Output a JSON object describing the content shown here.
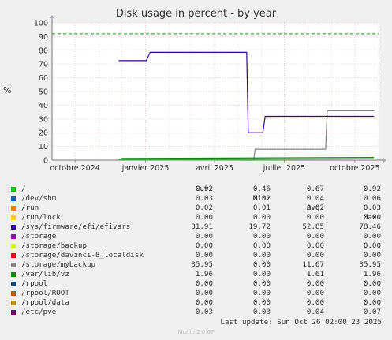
{
  "chart_data": {
    "type": "line",
    "title": "Disk usage in percent - by year",
    "ylabel": "%",
    "ylim": [
      0,
      100
    ],
    "yticks": [
      0,
      10,
      20,
      30,
      40,
      50,
      60,
      70,
      80,
      90,
      100
    ],
    "xlim": [
      "2024-09-01",
      "2025-11-01"
    ],
    "xticks": [
      {
        "date": "2024-10-01",
        "label": "octobre 2024"
      },
      {
        "date": "2025-01-01",
        "label": "janvier 2025"
      },
      {
        "date": "2025-04-01",
        "label": "avril 2025"
      },
      {
        "date": "2025-07-01",
        "label": "juillet 2025"
      },
      {
        "date": "2025-10-01",
        "label": "octobre 2025"
      }
    ],
    "grid": true,
    "warning_line": {
      "value": 92,
      "color": "#00aa00"
    },
    "series": [
      {
        "name": "/sys/firmware/efi/efivars",
        "color": "#330099",
        "points": [
          [
            "2024-11-27",
            72.5
          ],
          [
            "2025-01-02",
            72.5
          ],
          [
            "2025-01-07",
            78.5
          ],
          [
            "2025-05-13",
            78.5
          ],
          [
            "2025-05-15",
            20
          ],
          [
            "2025-06-03",
            20
          ],
          [
            "2025-06-06",
            31.9
          ],
          [
            "2025-10-26",
            31.9
          ]
        ]
      },
      {
        "name": "/storage/mybackup",
        "color": "#808080",
        "points": [
          [
            "2025-05-04",
            0
          ],
          [
            "2025-05-22",
            0
          ],
          [
            "2025-05-24",
            8
          ],
          [
            "2025-08-24",
            8
          ],
          [
            "2025-08-26",
            35.95
          ],
          [
            "2025-10-26",
            35.95
          ]
        ]
      },
      {
        "name": "/var/lib/vz",
        "color": "#008f00",
        "points": [
          [
            "2024-11-27",
            0.5
          ],
          [
            "2024-12-02",
            1.2
          ],
          [
            "2025-10-26",
            1.96
          ]
        ]
      },
      {
        "name": "/",
        "color": "#00cc00",
        "points": [
          [
            "2024-11-27",
            0.5
          ],
          [
            "2025-10-26",
            0.92
          ]
        ]
      }
    ]
  },
  "legend": {
    "headers": {
      "cur": "Cur:",
      "min": "Min:",
      "avg": "Avg:",
      "max": "Max:"
    },
    "rows": [
      {
        "name": "/",
        "color": "#00cc00",
        "cur": "0.92",
        "min": "0.46",
        "avg": "0.67",
        "max": "0.92"
      },
      {
        "name": "/dev/shm",
        "color": "#0066b3",
        "cur": "0.03",
        "min": "0.02",
        "avg": "0.04",
        "max": "0.06"
      },
      {
        "name": "/run",
        "color": "#ff8000",
        "cur": "0.02",
        "min": "0.01",
        "avg": "0.02",
        "max": "0.03"
      },
      {
        "name": "/run/lock",
        "color": "#ffcc00",
        "cur": "0.00",
        "min": "0.00",
        "avg": "0.00",
        "max": "0.00"
      },
      {
        "name": "/sys/firmware/efi/efivars",
        "color": "#330099",
        "cur": "31.91",
        "min": "19.72",
        "avg": "52.85",
        "max": "78.46"
      },
      {
        "name": "/storage",
        "color": "#990099",
        "cur": "0.00",
        "min": "0.00",
        "avg": "0.00",
        "max": "0.00"
      },
      {
        "name": "/storage/backup",
        "color": "#ccff00",
        "cur": "0.00",
        "min": "0.00",
        "avg": "0.00",
        "max": "0.00"
      },
      {
        "name": "/storage/davinci-8_localdisk",
        "color": "#ff0000",
        "cur": "0.00",
        "min": "0.00",
        "avg": "0.00",
        "max": "0.00"
      },
      {
        "name": "/storage/mybackup",
        "color": "#808080",
        "cur": "35.95",
        "min": "0.00",
        "avg": "11.67",
        "max": "35.95"
      },
      {
        "name": "/var/lib/vz",
        "color": "#008f00",
        "cur": "1.96",
        "min": "0.00",
        "avg": "1.61",
        "max": "1.96"
      },
      {
        "name": "/rpool",
        "color": "#00487d",
        "cur": "0.00",
        "min": "0.00",
        "avg": "0.00",
        "max": "0.00"
      },
      {
        "name": "/rpool/ROOT",
        "color": "#b35a00",
        "cur": "0.00",
        "min": "0.00",
        "avg": "0.00",
        "max": "0.00"
      },
      {
        "name": "/rpool/data",
        "color": "#b38f00",
        "cur": "0.00",
        "min": "0.00",
        "avg": "0.00",
        "max": "0.00"
      },
      {
        "name": "/etc/pve",
        "color": "#6b006b",
        "cur": "0.03",
        "min": "0.03",
        "avg": "0.04",
        "max": "0.07"
      }
    ]
  },
  "last_update": "Last update: Sun Oct 26 02:00:23 2025",
  "side_label": "RRDTOOL / TOBI OETIKER",
  "footer": "Munin 2.0.67"
}
